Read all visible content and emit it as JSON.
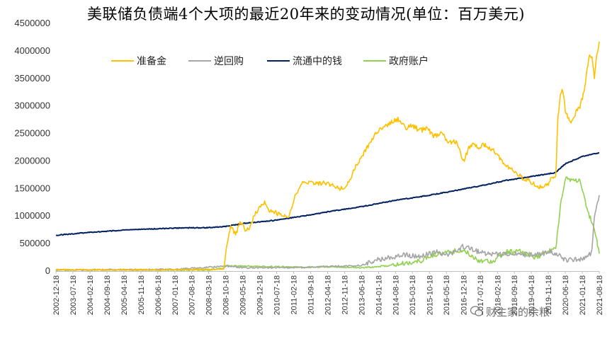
{
  "chart_data": {
    "type": "line",
    "title": "美联储负债端4个大项的最近20年来的变动情况(单位：百万美元)",
    "ylim": [
      0,
      4500000
    ],
    "yticks": [
      "0",
      "500000",
      "1000000",
      "1500000",
      "2000000",
      "2500000",
      "3000000",
      "3500000",
      "4000000",
      "4500000"
    ],
    "x_range": [
      "2002-12-18",
      "2021-08-18"
    ],
    "xticks": [
      "2002-12-18",
      "2003-07-18",
      "2004-02-18",
      "2004-09-18",
      "2005-04-18",
      "2005-11-18",
      "2006-06-18",
      "2007-01-18",
      "2007-08-18",
      "2008-03-18",
      "2008-10-18",
      "2009-05-18",
      "2009-12-18",
      "2010-07-18",
      "2011-02-18",
      "2011-09-18",
      "2012-04-18",
      "2012-11-18",
      "2013-06-18",
      "2014-01-18",
      "2014-08-18",
      "2015-03-18",
      "2015-10-18",
      "2016-05-18",
      "2016-12-18",
      "2017-07-18",
      "2018-02-18",
      "2018-09-18",
      "2019-04-18",
      "2019-11-18",
      "2020-06-18",
      "2021-01-18",
      "2021-08-18"
    ],
    "legend_position": "top-left",
    "grid": false,
    "series": [
      {
        "name": "准备金",
        "color": "#FFC000",
        "points": [
          [
            "2002-12-18",
            25000
          ],
          [
            "2004-06-18",
            23000
          ],
          [
            "2006-06-18",
            22000
          ],
          [
            "2008-03-18",
            30000
          ],
          [
            "2008-09-20",
            45000
          ],
          [
            "2008-10-18",
            300000
          ],
          [
            "2008-11-18",
            600000
          ],
          [
            "2008-12-18",
            820000
          ],
          [
            "2009-02-18",
            660000
          ],
          [
            "2009-04-18",
            880000
          ],
          [
            "2009-06-18",
            760000
          ],
          [
            "2009-08-18",
            790000
          ],
          [
            "2009-10-18",
            1050000
          ],
          [
            "2009-12-18",
            1150000
          ],
          [
            "2010-02-18",
            1230000
          ],
          [
            "2010-04-18",
            1080000
          ],
          [
            "2010-06-18",
            1070000
          ],
          [
            "2010-08-18",
            1030000
          ],
          [
            "2010-10-18",
            1000000
          ],
          [
            "2010-12-18",
            1010000
          ],
          [
            "2011-03-18",
            1400000
          ],
          [
            "2011-06-18",
            1650000
          ],
          [
            "2011-09-18",
            1600000
          ],
          [
            "2011-12-18",
            1580000
          ],
          [
            "2012-03-18",
            1600000
          ],
          [
            "2012-06-18",
            1550000
          ],
          [
            "2012-09-18",
            1500000
          ],
          [
            "2012-12-18",
            1550000
          ],
          [
            "2013-03-18",
            1850000
          ],
          [
            "2013-06-18",
            2050000
          ],
          [
            "2013-09-18",
            2300000
          ],
          [
            "2013-12-18",
            2500000
          ],
          [
            "2014-03-18",
            2620000
          ],
          [
            "2014-06-18",
            2700000
          ],
          [
            "2014-09-18",
            2750000
          ],
          [
            "2014-12-18",
            2600000
          ],
          [
            "2015-03-18",
            2650000
          ],
          [
            "2015-06-18",
            2550000
          ],
          [
            "2015-09-18",
            2600000
          ],
          [
            "2015-12-18",
            2450000
          ],
          [
            "2016-03-18",
            2500000
          ],
          [
            "2016-06-18",
            2350000
          ],
          [
            "2016-09-18",
            2350000
          ],
          [
            "2016-12-18",
            2000000
          ],
          [
            "2017-03-18",
            2300000
          ],
          [
            "2017-06-18",
            2250000
          ],
          [
            "2017-09-18",
            2300000
          ],
          [
            "2017-12-18",
            2200000
          ],
          [
            "2018-03-18",
            2050000
          ],
          [
            "2018-06-18",
            1900000
          ],
          [
            "2018-09-18",
            1800000
          ],
          [
            "2018-12-18",
            1700000
          ],
          [
            "2019-03-18",
            1650000
          ],
          [
            "2019-06-18",
            1550000
          ],
          [
            "2019-09-18",
            1500000
          ],
          [
            "2019-12-18",
            1650000
          ],
          [
            "2020-02-18",
            1700000
          ],
          [
            "2020-03-18",
            2800000
          ],
          [
            "2020-04-18",
            3200000
          ],
          [
            "2020-05-18",
            3300000
          ],
          [
            "2020-06-18",
            2900000
          ],
          [
            "2020-08-18",
            2700000
          ],
          [
            "2020-10-18",
            2850000
          ],
          [
            "2020-12-18",
            3000000
          ],
          [
            "2021-02-18",
            3300000
          ],
          [
            "2021-03-18",
            3700000
          ],
          [
            "2021-04-18",
            3900000
          ],
          [
            "2021-05-18",
            3850000
          ],
          [
            "2021-06-18",
            3500000
          ],
          [
            "2021-07-18",
            3950000
          ],
          [
            "2021-08-18",
            4150000
          ]
        ]
      },
      {
        "name": "逆回购",
        "color": "#A5A5A5",
        "points": [
          [
            "2002-12-18",
            20000
          ],
          [
            "2007-01-18",
            30000
          ],
          [
            "2008-10-18",
            90000
          ],
          [
            "2009-06-18",
            60000
          ],
          [
            "2010-06-18",
            60000
          ],
          [
            "2011-06-18",
            65000
          ],
          [
            "2012-06-18",
            85000
          ],
          [
            "2013-06-18",
            100000
          ],
          [
            "2013-12-18",
            200000
          ],
          [
            "2014-06-18",
            250000
          ],
          [
            "2014-12-18",
            300000
          ],
          [
            "2015-06-18",
            250000
          ],
          [
            "2015-12-18",
            350000
          ],
          [
            "2016-06-18",
            300000
          ],
          [
            "2016-12-18",
            450000
          ],
          [
            "2017-06-18",
            350000
          ],
          [
            "2017-12-18",
            300000
          ],
          [
            "2018-06-18",
            300000
          ],
          [
            "2018-12-18",
            300000
          ],
          [
            "2019-06-18",
            300000
          ],
          [
            "2019-12-18",
            350000
          ],
          [
            "2020-03-18",
            300000
          ],
          [
            "2020-06-18",
            200000
          ],
          [
            "2020-12-18",
            220000
          ],
          [
            "2021-03-18",
            250000
          ],
          [
            "2021-05-18",
            350000
          ],
          [
            "2021-06-18",
            1000000
          ],
          [
            "2021-07-18",
            1200000
          ],
          [
            "2021-08-18",
            1350000
          ]
        ]
      },
      {
        "name": "流通中的钱",
        "color": "#002060",
        "points": [
          [
            "2002-12-18",
            650000
          ],
          [
            "2004-01-18",
            700000
          ],
          [
            "2005-06-18",
            750000
          ],
          [
            "2007-01-18",
            780000
          ],
          [
            "2008-03-18",
            790000
          ],
          [
            "2008-10-18",
            810000
          ],
          [
            "2009-06-18",
            870000
          ],
          [
            "2010-06-18",
            920000
          ],
          [
            "2011-06-18",
            1000000
          ],
          [
            "2012-06-18",
            1090000
          ],
          [
            "2013-06-18",
            1170000
          ],
          [
            "2014-06-18",
            1270000
          ],
          [
            "2015-06-18",
            1350000
          ],
          [
            "2016-06-18",
            1440000
          ],
          [
            "2017-06-18",
            1540000
          ],
          [
            "2018-06-18",
            1650000
          ],
          [
            "2019-06-18",
            1730000
          ],
          [
            "2020-02-18",
            1790000
          ],
          [
            "2020-06-18",
            1950000
          ],
          [
            "2021-01-18",
            2080000
          ],
          [
            "2021-08-18",
            2150000
          ]
        ]
      },
      {
        "name": "政府账户",
        "color": "#92D050",
        "points": [
          [
            "2002-12-18",
            20000
          ],
          [
            "2008-03-18",
            20000
          ],
          [
            "2008-09-18",
            50000
          ],
          [
            "2008-10-18",
            100000
          ],
          [
            "2009-06-18",
            90000
          ],
          [
            "2010-06-18",
            80000
          ],
          [
            "2011-06-18",
            70000
          ],
          [
            "2012-06-18",
            80000
          ],
          [
            "2013-06-18",
            60000
          ],
          [
            "2014-06-18",
            100000
          ],
          [
            "2015-06-18",
            180000
          ],
          [
            "2015-12-18",
            300000
          ],
          [
            "2016-06-18",
            350000
          ],
          [
            "2016-12-18",
            380000
          ],
          [
            "2017-06-18",
            200000
          ],
          [
            "2017-12-18",
            180000
          ],
          [
            "2018-06-18",
            350000
          ],
          [
            "2018-12-18",
            350000
          ],
          [
            "2019-06-18",
            250000
          ],
          [
            "2019-12-18",
            380000
          ],
          [
            "2020-02-18",
            400000
          ],
          [
            "2020-04-18",
            1200000
          ],
          [
            "2020-06-18",
            1700000
          ],
          [
            "2020-09-18",
            1650000
          ],
          [
            "2020-12-18",
            1650000
          ],
          [
            "2021-03-18",
            1100000
          ],
          [
            "2021-06-18",
            800000
          ],
          [
            "2021-08-18",
            300000
          ]
        ]
      }
    ]
  },
  "watermark": "财主家的余粮"
}
